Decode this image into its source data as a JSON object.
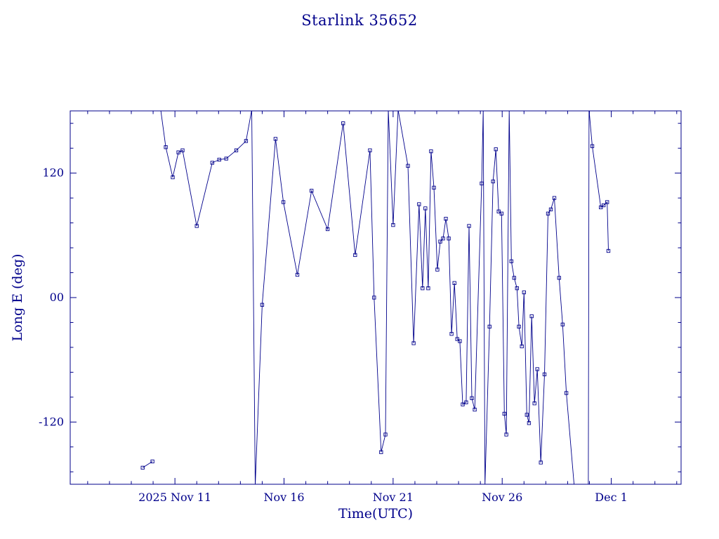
{
  "page": {
    "background": "#ffffff"
  },
  "chart_data": {
    "type": "line",
    "title": "Starlink 35652",
    "xlabel": "Time(UTC)",
    "ylabel": "Long E (deg)",
    "line_color": "#00008b",
    "marker": "open-square",
    "legend": "none",
    "grid": false,
    "x_encoding": "day number of November 2025 (11 = 2025 Nov 11, 31 = Dec 1)",
    "xlim": [
      6.2,
      34.2
    ],
    "ylim": [
      -180,
      180
    ],
    "x_minor_step": 1,
    "y_minor_step": 24,
    "x_ticks": [
      {
        "value": 11,
        "label": "2025 Nov 11"
      },
      {
        "value": 16,
        "label": "Nov 16"
      },
      {
        "value": 21,
        "label": "Nov 21"
      },
      {
        "value": 26,
        "label": "Nov 26"
      },
      {
        "value": 31,
        "label": "Dec 1"
      }
    ],
    "y_ticks": [
      {
        "value": 120,
        "label": "120"
      },
      {
        "value": 0,
        "label": "00"
      },
      {
        "value": -120,
        "label": "-120"
      }
    ],
    "note": "Longitude wraps at +/-180 deg; points at +/-181 are off-frame wrap points (clipped, no marker).",
    "segments": [
      [
        [
          9.52,
          -164
        ],
        [
          9.97,
          -158
        ]
      ],
      [
        [
          10.35,
          181
        ],
        [
          10.58,
          145
        ],
        [
          10.9,
          116
        ],
        [
          11.16,
          140
        ],
        [
          11.35,
          142
        ],
        [
          12.0,
          69
        ],
        [
          12.71,
          130
        ],
        [
          13.03,
          133
        ],
        [
          13.35,
          134
        ],
        [
          13.81,
          142
        ],
        [
          14.26,
          151
        ],
        [
          14.52,
          181
        ],
        [
          14.68,
          -181
        ],
        [
          15.0,
          -7
        ],
        [
          15.61,
          153
        ],
        [
          15.97,
          92
        ],
        [
          16.61,
          22
        ],
        [
          17.26,
          103
        ],
        [
          18.0,
          66
        ],
        [
          18.71,
          168
        ],
        [
          19.26,
          41
        ],
        [
          19.94,
          142
        ],
        [
          20.13,
          0
        ],
        [
          20.45,
          -149
        ],
        [
          20.65,
          -132
        ],
        [
          20.78,
          181
        ],
        [
          21.0,
          70
        ],
        [
          21.23,
          181
        ],
        [
          21.68,
          127
        ],
        [
          21.94,
          -44
        ],
        [
          22.19,
          90
        ],
        [
          22.35,
          9
        ],
        [
          22.48,
          86
        ],
        [
          22.61,
          9
        ],
        [
          22.74,
          141
        ],
        [
          22.87,
          106
        ],
        [
          23.03,
          27
        ],
        [
          23.16,
          54
        ],
        [
          23.29,
          57
        ],
        [
          23.42,
          76
        ],
        [
          23.55,
          57
        ],
        [
          23.68,
          -35
        ],
        [
          23.81,
          14
        ],
        [
          23.94,
          -40
        ],
        [
          24.06,
          -42
        ],
        [
          24.19,
          -103
        ],
        [
          24.35,
          -101
        ],
        [
          24.48,
          69
        ],
        [
          24.61,
          -97
        ],
        [
          24.74,
          -108
        ],
        [
          25.06,
          110
        ],
        [
          25.13,
          181
        ],
        [
          25.21,
          -181
        ],
        [
          25.42,
          -28
        ],
        [
          25.58,
          112
        ],
        [
          25.71,
          143
        ],
        [
          25.84,
          83
        ],
        [
          25.97,
          81
        ],
        [
          26.1,
          -112
        ],
        [
          26.19,
          -132
        ],
        [
          26.32,
          181
        ],
        [
          26.42,
          35
        ],
        [
          26.55,
          19
        ],
        [
          26.68,
          9
        ],
        [
          26.77,
          -28
        ],
        [
          26.9,
          -47
        ],
        [
          27.0,
          5
        ],
        [
          27.13,
          -113
        ],
        [
          27.23,
          -121
        ],
        [
          27.35,
          -18
        ],
        [
          27.48,
          -102
        ],
        [
          27.61,
          -69
        ],
        [
          27.77,
          -159
        ],
        [
          27.94,
          -74
        ],
        [
          28.1,
          81
        ],
        [
          28.23,
          85
        ],
        [
          28.39,
          96
        ],
        [
          28.61,
          19
        ],
        [
          28.77,
          -26
        ],
        [
          28.94,
          -92
        ],
        [
          29.3,
          -181
        ]
      ],
      [
        [
          29.95,
          -181
        ],
        [
          29.98,
          181
        ],
        [
          30.13,
          146
        ],
        [
          30.52,
          87
        ],
        [
          30.65,
          89
        ],
        [
          30.81,
          92
        ],
        [
          30.87,
          45
        ]
      ]
    ]
  }
}
